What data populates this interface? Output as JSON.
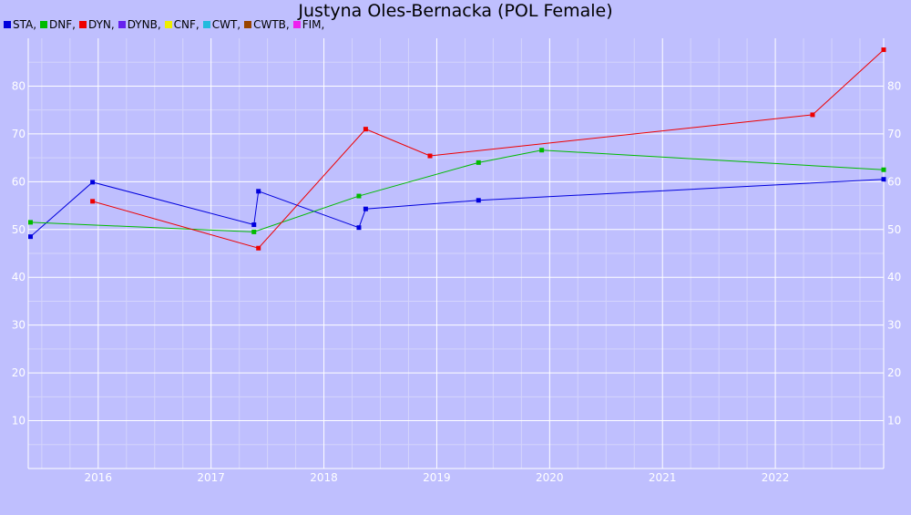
{
  "chart_data": {
    "type": "line",
    "title": "Justyna Oles-Bernacka (POL Female)",
    "xlabel": "",
    "ylabel": "",
    "legend_position": "top-left",
    "grid": true,
    "xlim": [
      2015.38,
      2022.96
    ],
    "ylim": [
      0,
      90
    ],
    "x_ticks": [
      2016,
      2017,
      2018,
      2019,
      2020,
      2021,
      2022
    ],
    "y_ticks": [
      10,
      20,
      30,
      40,
      50,
      60,
      70,
      80
    ],
    "legend": [
      {
        "label": "STA,",
        "color": "#0000dd"
      },
      {
        "label": "DNF,",
        "color": "#00bb00"
      },
      {
        "label": "DYN,",
        "color": "#ee0000"
      },
      {
        "label": "DYNB,",
        "color": "#6622ee"
      },
      {
        "label": "CNF,",
        "color": "#eeee00"
      },
      {
        "label": "CWT,",
        "color": "#22bbdd"
      },
      {
        "label": "CWTB,",
        "color": "#994400"
      },
      {
        "label": "FIM,",
        "color": "#ee22ee"
      }
    ],
    "series": [
      {
        "name": "STA",
        "color": "#0000dd",
        "points": [
          [
            2015.4,
            48.5
          ],
          [
            2015.95,
            59.9
          ],
          [
            2017.38,
            51.0
          ],
          [
            2017.42,
            58.0
          ],
          [
            2018.31,
            50.4
          ],
          [
            2018.37,
            54.3
          ],
          [
            2019.37,
            56.1
          ],
          [
            2022.96,
            60.5
          ]
        ]
      },
      {
        "name": "DNF",
        "color": "#00bb00",
        "points": [
          [
            2015.4,
            51.5
          ],
          [
            2017.38,
            49.5
          ],
          [
            2018.31,
            57.0
          ],
          [
            2019.37,
            64.0
          ],
          [
            2019.93,
            66.6
          ],
          [
            2022.96,
            62.5
          ]
        ]
      },
      {
        "name": "DYN",
        "color": "#ee0000",
        "points": [
          [
            2015.95,
            55.9
          ],
          [
            2017.42,
            46.1
          ],
          [
            2018.37,
            71.0
          ],
          [
            2018.94,
            65.4
          ],
          [
            2022.33,
            74.0
          ],
          [
            2022.96,
            87.6
          ]
        ]
      }
    ]
  }
}
